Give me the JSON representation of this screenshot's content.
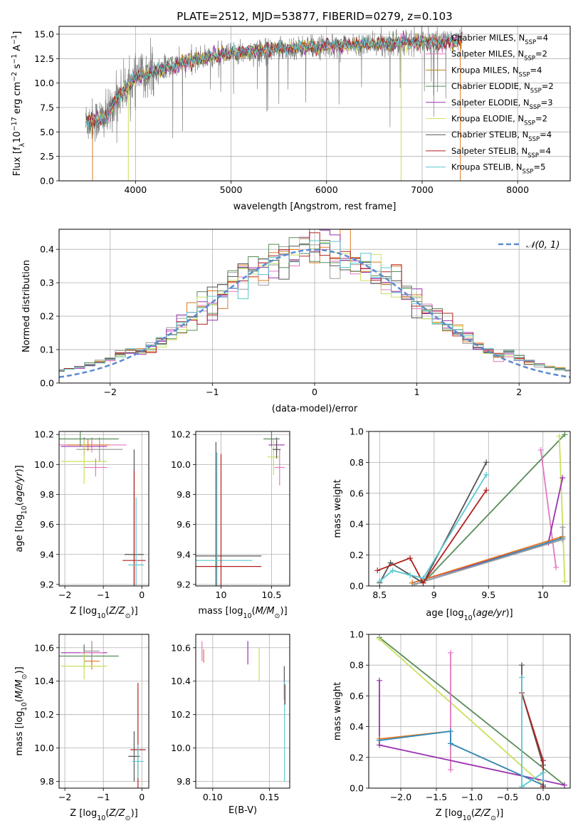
{
  "chart_data": [
    {
      "id": "spectrum",
      "type": "line",
      "title": "PLATE=2512, MJD=53877, FIBERID=0279, z=0.103",
      "xlabel": "wavelength [Angstrom, rest frame]",
      "ylabel_parts": [
        "Flux [f",
        "λ",
        "10",
        "−17",
        " erg cm",
        "−2",
        " s",
        "−1",
        " A",
        "−1",
        "]"
      ],
      "xlim": [
        3200,
        8550
      ],
      "ylim": [
        0,
        15.8
      ],
      "xticks": [
        4000,
        5000,
        6000,
        7000,
        8000
      ],
      "yticks": [
        0.0,
        2.5,
        5.0,
        7.5,
        10.0,
        12.5,
        15.0
      ],
      "data_range": [
        3480,
        7420
      ],
      "continuum": {
        "x": [
          3480,
          3700,
          3800,
          3900,
          4000,
          4100,
          4200,
          4400,
          4600,
          4800,
          5000,
          5200,
          5500,
          6000,
          6500,
          7000,
          7420
        ],
        "y": [
          6.0,
          6.5,
          8.5,
          9.5,
          10.5,
          10.8,
          11.2,
          11.8,
          12.3,
          12.7,
          13.0,
          13.2,
          13.5,
          13.8,
          14.0,
          14.2,
          14.3
        ]
      },
      "noise_sigma": 0.7,
      "model_color": "#5cc8d0",
      "data_color": "#808080"
    },
    {
      "id": "residuals",
      "type": "step",
      "xlabel": "(data-model)/error",
      "ylabel": "Normed distribution",
      "xlim": [
        -2.5,
        2.5
      ],
      "ylim": [
        0,
        0.46
      ],
      "xticks": [
        -2,
        -1,
        0,
        1,
        2
      ],
      "xticklabels": [
        "−2",
        "−1",
        "0",
        "1",
        "2"
      ],
      "yticks": [
        0.0,
        0.1,
        0.2,
        0.3,
        0.4
      ],
      "bin_width": 0.1,
      "gaussian_label": "𝒩(0, 1)",
      "gaussian_color": "#5b8bd0"
    },
    {
      "id": "age_vs_Z",
      "type": "errorbar",
      "xlabel": "Z [log10(Z/Z⊙)]",
      "ylabel": "age  [log10(age/yr)]",
      "xlim": [
        -2.15,
        0.18
      ],
      "ylim": [
        9.19,
        10.22
      ],
      "xticks": [
        -2,
        -1,
        0
      ],
      "xticklabels": [
        "−2",
        "−1",
        "0"
      ],
      "yticks": [
        9.2,
        9.4,
        9.6,
        9.8,
        10.0,
        10.2
      ],
      "points": [
        {
          "x": -1.3,
          "y": 10.13,
          "xerr": 0.9,
          "yerr": 0.05,
          "c": "#e377c2"
        },
        {
          "x": -1.1,
          "y": 10.1,
          "xerr": 0.6,
          "yerr": 0.08,
          "c": "#9e9e9e"
        },
        {
          "x": -1.5,
          "y": 10.12,
          "xerr": 0.6,
          "yerr": 0.06,
          "c": "#9b30b0"
        },
        {
          "x": -1.4,
          "y": 10.13,
          "xerr": 0.55,
          "yerr": 0.04,
          "c": "#e07820"
        },
        {
          "x": -1.5,
          "y": 10.02,
          "xerr": 0.6,
          "yerr": 0.15,
          "c": "#c8e05c"
        },
        {
          "x": -1.6,
          "y": 10.17,
          "xerr": 1.0,
          "yerr": 0.05,
          "c": "#5a8c5a"
        },
        {
          "x": -1.2,
          "y": 9.98,
          "xerr": 0.3,
          "yerr": 0.06,
          "c": "#e377c2"
        },
        {
          "x": -0.2,
          "y": 9.4,
          "xerr": 0.25,
          "yerr": 0.7,
          "c": "#555555"
        },
        {
          "x": -0.2,
          "y": 9.36,
          "xerr": 0.3,
          "yerr": 0.6,
          "c": "#b22222"
        },
        {
          "x": -0.15,
          "y": 9.33,
          "xerr": 0.2,
          "yerr": 0.45,
          "c": "#5cc8d0"
        }
      ]
    },
    {
      "id": "age_vs_mass",
      "type": "errorbar",
      "xlabel": "mass [log10(M/M⊙)]",
      "xlim": [
        9.75,
        10.68
      ],
      "ylim": [
        9.19,
        10.22
      ],
      "xticks": [
        10.0,
        10.5
      ],
      "yticks": [
        9.2,
        9.4,
        9.6,
        9.8,
        10.0,
        10.2
      ],
      "points": [
        {
          "x": 10.55,
          "y": 10.13,
          "xerr": 0.08,
          "yerr": 0.05,
          "c": "#9b30b0"
        },
        {
          "x": 10.58,
          "y": 9.98,
          "xerr": 0.05,
          "yerr": 0.12,
          "c": "#e377c2"
        },
        {
          "x": 10.52,
          "y": 10.05,
          "xerr": 0.06,
          "yerr": 0.12,
          "c": "#c8e05c"
        },
        {
          "x": 10.5,
          "y": 10.17,
          "xerr": 0.08,
          "yerr": 0.05,
          "c": "#5a8c5a"
        },
        {
          "x": 10.55,
          "y": 10.1,
          "xerr": 0.04,
          "yerr": 0.06,
          "c": "#555555"
        },
        {
          "x": 9.95,
          "y": 9.39,
          "xerr": 0.45,
          "yerr": 0.76,
          "c": "#555555"
        },
        {
          "x": 9.96,
          "y": 9.36,
          "xerr": 0.35,
          "yerr": 0.72,
          "c": "#5cc8d0"
        },
        {
          "x": 10.0,
          "y": 9.32,
          "xerr": 0.4,
          "yerr": 0.75,
          "c": "#b22222"
        }
      ]
    },
    {
      "id": "weight_vs_age",
      "type": "line",
      "xlabel": "age  [log10(age/yr)]",
      "ylabel": "mass weight",
      "xlim": [
        8.4,
        10.25
      ],
      "ylim": [
        0,
        1.0
      ],
      "xticks": [
        8.5,
        9.0,
        9.5,
        10.0
      ],
      "yticks": [
        0.0,
        0.2,
        0.4,
        0.6,
        0.8,
        1.0
      ],
      "series": [
        {
          "c": "#5a8c5a",
          "x": [
            8.9,
            10.2
          ],
          "y": [
            0.02,
            0.98
          ]
        },
        {
          "c": "#c8e05c",
          "x": [
            10.15,
            10.2
          ],
          "y": [
            0.97,
            0.03
          ]
        },
        {
          "c": "#e377c2",
          "x": [
            9.98,
            10.12
          ],
          "y": [
            0.88,
            0.12
          ]
        },
        {
          "c": "#9b30b0",
          "x": [
            8.8,
            10.05,
            10.18
          ],
          "y": [
            0.02,
            0.28,
            0.7
          ]
        },
        {
          "c": "#e07820",
          "x": [
            8.8,
            10.18
          ],
          "y": [
            0.02,
            0.32
          ]
        },
        {
          "c": "#2e8bc0",
          "x": [
            8.82,
            10.18
          ],
          "y": [
            0.01,
            0.31
          ]
        },
        {
          "c": "#9e9e9e",
          "x": [
            8.82,
            10.18,
            10.18
          ],
          "y": [
            0.01,
            0.3,
            0.38
          ]
        },
        {
          "c": "#555555",
          "x": [
            8.5,
            8.6,
            8.9,
            9.48
          ],
          "y": [
            0.02,
            0.15,
            0.02,
            0.8
          ]
        },
        {
          "c": "#b22222",
          "x": [
            8.48,
            8.78,
            8.9,
            9.48
          ],
          "y": [
            0.1,
            0.18,
            0.02,
            0.62
          ]
        },
        {
          "c": "#5cc8d0",
          "x": [
            8.5,
            8.62,
            8.78,
            8.9,
            9.48
          ],
          "y": [
            0.03,
            0.1,
            0.07,
            0.05,
            0.72
          ]
        }
      ]
    },
    {
      "id": "mass_vs_Z",
      "type": "errorbar",
      "xlabel": "Z [log10(Z/Z⊙)]",
      "ylabel": "mass [log10(M/M⊙)]",
      "xlim": [
        -2.15,
        0.18
      ],
      "ylim": [
        9.76,
        10.68
      ],
      "xticks": [
        -2,
        -1,
        0
      ],
      "xticklabels": [
        "−2",
        "−1",
        "0"
      ],
      "yticks": [
        9.8,
        10.0,
        10.2,
        10.4,
        10.6
      ],
      "points": [
        {
          "x": -1.5,
          "y": 10.57,
          "xerr": 0.6,
          "yerr": 0.04,
          "c": "#9b30b0"
        },
        {
          "x": -1.3,
          "y": 10.57,
          "xerr": 0.3,
          "yerr": 0.07,
          "c": "#e377c2"
        },
        {
          "x": -1.3,
          "y": 10.52,
          "xerr": 0.2,
          "yerr": 0.05,
          "c": "#e07820"
        },
        {
          "x": -1.5,
          "y": 10.55,
          "xerr": 0.9,
          "yerr": 0.07,
          "c": "#5a8c5a"
        },
        {
          "x": -1.5,
          "y": 10.49,
          "xerr": 0.6,
          "yerr": 0.08,
          "c": "#c8e05c"
        },
        {
          "x": -1.3,
          "y": 10.58,
          "xerr": 0.2,
          "yerr": 0.06,
          "c": "#9e9e9e"
        },
        {
          "x": -0.2,
          "y": 9.95,
          "xerr": 0.15,
          "yerr": 0.15,
          "c": "#555555"
        },
        {
          "x": -0.1,
          "y": 9.99,
          "xerr": 0.2,
          "yerr": 0.4,
          "c": "#b22222"
        },
        {
          "x": -0.1,
          "y": 9.92,
          "xerr": 0.15,
          "yerr": 0.1,
          "c": "#5cc8d0"
        }
      ]
    },
    {
      "id": "mass_vs_ebv",
      "type": "errorbar",
      "xlabel": "E(B-V)",
      "xlim": [
        0.085,
        0.168
      ],
      "ylim": [
        9.76,
        10.68
      ],
      "xticks": [
        0.1,
        0.15
      ],
      "xticklabels": [
        "0.10",
        "0.15"
      ],
      "yticks": [
        9.8,
        10.0,
        10.2,
        10.4,
        10.6
      ],
      "points": [
        {
          "x": 0.0905,
          "y": 10.58,
          "xerr": 0,
          "yerr": 0.06,
          "c": "#e377c2"
        },
        {
          "x": 0.092,
          "y": 10.55,
          "xerr": 0,
          "yerr": 0.04,
          "c": "#e07820"
        },
        {
          "x": 0.131,
          "y": 10.57,
          "xerr": 0,
          "yerr": 0.07,
          "c": "#9b30b0"
        },
        {
          "x": 0.141,
          "y": 10.5,
          "xerr": 0,
          "yerr": 0.1,
          "c": "#c8e05c"
        },
        {
          "x": 0.1632,
          "y": 10.39,
          "xerr": 0,
          "yerr": 0.1,
          "c": "#555555"
        },
        {
          "x": 0.1634,
          "y": 10.1,
          "xerr": 0,
          "yerr": 0.3,
          "c": "#5cc8d0"
        },
        {
          "x": 0.1638,
          "y": 10.32,
          "xerr": 0,
          "yerr": 0.06,
          "c": "#b22222"
        }
      ]
    },
    {
      "id": "weight_vs_Z",
      "type": "line",
      "xlabel": "Z [log10(Z/Z⊙)]",
      "ylabel": "mass weight",
      "xlim": [
        -2.45,
        0.38
      ],
      "ylim": [
        0,
        1.0
      ],
      "xticks": [
        -2.0,
        -1.5,
        -1.0,
        -0.5,
        0.0
      ],
      "xticklabels": [
        "−2.0",
        "−1.5",
        "−1.0",
        "−0.5",
        "0.0"
      ],
      "yticks": [
        0.0,
        0.2,
        0.4,
        0.6,
        0.8,
        1.0
      ],
      "series": [
        {
          "c": "#5a8c5a",
          "x": [
            -2.3,
            0.3
          ],
          "y": [
            0.98,
            0.02
          ]
        },
        {
          "c": "#c8e05c",
          "x": [
            -2.3,
            0.0
          ],
          "y": [
            0.97,
            0.02
          ]
        },
        {
          "c": "#e377c2",
          "x": [
            -1.3,
            -1.3
          ],
          "y": [
            0.88,
            0.12
          ]
        },
        {
          "c": "#9b30b0",
          "x": [
            -2.3,
            -2.3,
            0.3
          ],
          "y": [
            0.7,
            0.28,
            0.02
          ]
        },
        {
          "c": "#e07820",
          "x": [
            -2.3,
            -1.3,
            -1.3,
            0.0
          ],
          "y": [
            0.32,
            0.37,
            0.29,
            0.02
          ]
        },
        {
          "c": "#2e8bc0",
          "x": [
            -2.3,
            -1.3,
            -1.3,
            0.0
          ],
          "y": [
            0.31,
            0.37,
            0.29,
            0.02
          ]
        },
        {
          "c": "#555555",
          "x": [
            -0.3,
            -0.3,
            0.0,
            0.0
          ],
          "y": [
            0.8,
            0.62,
            0.15,
            0.01
          ]
        },
        {
          "c": "#b22222",
          "x": [
            -0.3,
            0.0,
            0.0
          ],
          "y": [
            0.62,
            0.18,
            0.01
          ]
        },
        {
          "c": "#5cc8d0",
          "x": [
            -0.3,
            -0.3,
            0.0,
            0.0
          ],
          "y": [
            0.72,
            0.01,
            0.1,
            0.05
          ]
        }
      ]
    }
  ],
  "legend": [
    {
      "name": "Chabrier MILES",
      "n": "4",
      "c": "#9e9e9e"
    },
    {
      "name": "Salpeter MILES",
      "n": "2",
      "c": "#e377c2"
    },
    {
      "name": "Kroupa MILES",
      "n": "4",
      "c": "#b8860b"
    },
    {
      "name": "Chabrier ELODIE",
      "n": "2",
      "c": "#5a8c5a"
    },
    {
      "name": "Salpeter ELODIE",
      "n": "3",
      "c": "#9b30b0"
    },
    {
      "name": "Kroupa ELODIE",
      "n": "2",
      "c": "#d8e070"
    },
    {
      "name": "Chabrier STELIB",
      "n": "4",
      "c": "#555555"
    },
    {
      "name": "Salpeter STELIB",
      "n": "4",
      "c": "#b22222"
    },
    {
      "name": "Kroupa STELIB",
      "n": "5",
      "c": "#5cc8d0"
    }
  ],
  "legend_sub": "SSP",
  "legend_eq": "N",
  "hist_colors": [
    "#9e9e9e",
    "#e377c2",
    "#e07820",
    "#5a8c5a",
    "#9b30b0",
    "#c8e05c",
    "#555555",
    "#b22222",
    "#5cc8d0"
  ]
}
